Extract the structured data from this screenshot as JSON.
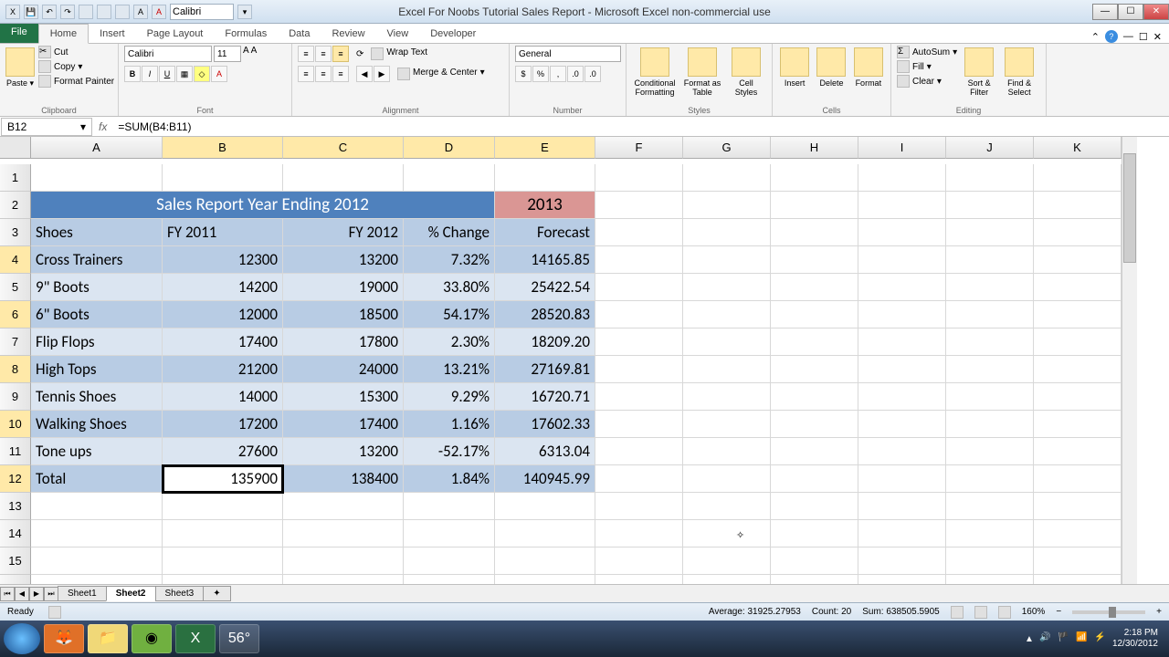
{
  "window": {
    "title": "Excel For Noobs Tutorial Sales Report - Microsoft Excel non-commercial use",
    "qat_font": "Calibri"
  },
  "ribbon": {
    "file": "File",
    "tabs": [
      "Home",
      "Insert",
      "Page Layout",
      "Formulas",
      "Data",
      "Review",
      "View",
      "Developer"
    ],
    "active_tab": "Home",
    "groups": {
      "clipboard": {
        "label": "Clipboard",
        "paste": "Paste",
        "cut": "Cut",
        "copy": "Copy",
        "format_painter": "Format Painter"
      },
      "font": {
        "label": "Font",
        "name": "Calibri",
        "size": "11"
      },
      "alignment": {
        "label": "Alignment",
        "wrap": "Wrap Text",
        "merge": "Merge & Center"
      },
      "number": {
        "label": "Number",
        "format": "General"
      },
      "styles": {
        "label": "Styles",
        "cond": "Conditional Formatting",
        "table": "Format as Table",
        "cell": "Cell Styles"
      },
      "cells": {
        "label": "Cells",
        "insert": "Insert",
        "delete": "Delete",
        "format": "Format"
      },
      "editing": {
        "label": "Editing",
        "autosum": "AutoSum",
        "fill": "Fill",
        "clear": "Clear",
        "sort": "Sort & Filter",
        "find": "Find & Select"
      }
    }
  },
  "formula_bar": {
    "name_box": "B12",
    "formula": "=SUM(B4:B11)"
  },
  "sheet": {
    "columns": [
      "A",
      "B",
      "C",
      "D",
      "E",
      "F",
      "G",
      "H",
      "I",
      "J",
      "K"
    ],
    "selected_cols": [
      "B",
      "C",
      "D",
      "E"
    ],
    "active_cell": "B12",
    "title_main": "Sales Report Year Ending 2012",
    "title_year": "2013",
    "headers": {
      "a": "Shoes",
      "b": "FY 2011",
      "c": "FY 2012",
      "d": "% Change",
      "e": "Forecast"
    },
    "rows": [
      {
        "n": 4,
        "a": "Cross Trainers",
        "b": "12300",
        "c": "13200",
        "d": "7.32%",
        "e": "14165.85"
      },
      {
        "n": 5,
        "a": "9\" Boots",
        "b": "14200",
        "c": "19000",
        "d": "33.80%",
        "e": "25422.54"
      },
      {
        "n": 6,
        "a": "6\" Boots",
        "b": "12000",
        "c": "18500",
        "d": "54.17%",
        "e": "28520.83"
      },
      {
        "n": 7,
        "a": "Flip Flops",
        "b": "17400",
        "c": "17800",
        "d": "2.30%",
        "e": "18209.20"
      },
      {
        "n": 8,
        "a": "High Tops",
        "b": "21200",
        "c": "24000",
        "d": "13.21%",
        "e": "27169.81"
      },
      {
        "n": 9,
        "a": "Tennis Shoes",
        "b": "14000",
        "c": "15300",
        "d": "9.29%",
        "e": "16720.71"
      },
      {
        "n": 10,
        "a": "Walking Shoes",
        "b": "17200",
        "c": "17400",
        "d": "1.16%",
        "e": "17602.33"
      },
      {
        "n": 11,
        "a": "Tone ups",
        "b": "27600",
        "c": "13200",
        "d": "-52.17%",
        "e": "6313.04"
      }
    ],
    "total": {
      "n": 12,
      "a": "Total",
      "b": "135900",
      "c": "138400",
      "d": "1.84%",
      "e": "140945.99"
    },
    "colors": {
      "header_blue": "#4f81bd",
      "header_red": "#da9694",
      "band_dark": "#b8cce4",
      "band_light": "#dbe5f1",
      "col_sel": "#ffe9a8"
    }
  },
  "sheets": {
    "tabs": [
      "Sheet1",
      "Sheet2",
      "Sheet3"
    ],
    "active": "Sheet2"
  },
  "status": {
    "ready": "Ready",
    "average": "Average: 31925.27953",
    "count": "Count: 20",
    "sum": "Sum: 638505.5905",
    "zoom": "160%"
  },
  "taskbar": {
    "temp": "56°",
    "time": "2:18 PM",
    "date": "12/30/2012"
  }
}
